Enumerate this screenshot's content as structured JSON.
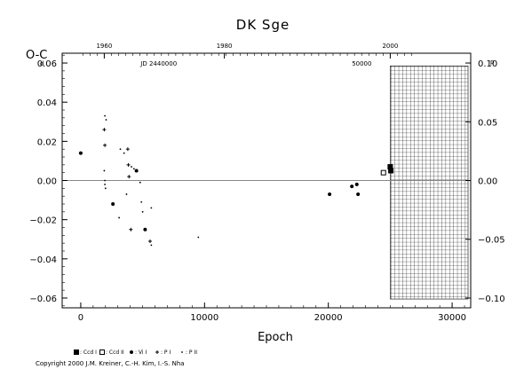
{
  "chart_data": {
    "type": "scatter",
    "title": "DK Sge",
    "xlabel": "Epoch",
    "ylabel": "O-C",
    "ylabel_exponent": "d",
    "right_axis_exponent": "p",
    "xlim": [
      -1500,
      31500
    ],
    "ylim": [
      -0.065,
      0.065
    ],
    "right_axis_ticks": [
      "0.10",
      "0.05",
      "0.00",
      "−0.05",
      "−0.10"
    ],
    "right_axis_values": [
      0.1,
      0.05,
      0.0,
      -0.05,
      -0.1
    ],
    "right_axis_period_days": 0.6,
    "x_ticks": [
      "0",
      "10000",
      "20000",
      "30000"
    ],
    "x_tick_values": [
      0,
      10000,
      20000,
      30000
    ],
    "y_ticks": [
      "0.06",
      "0.04",
      "0.02",
      "0.00",
      "−0.02",
      "−0.04",
      "−0.06"
    ],
    "y_tick_values": [
      0.06,
      0.04,
      0.02,
      0.0,
      -0.02,
      -0.04,
      -0.06
    ],
    "top_axis_ticks": [
      "1960",
      "1980",
      "2000"
    ],
    "top_axis_epochs": [
      1900,
      11600,
      25000
    ],
    "top_axis_label_jd": "JD 2440000",
    "top_axis_label_jd_epoch": 6300,
    "top_axis_label_50000": "50000",
    "top_axis_label_50000_epoch": 22700,
    "future_region_start_epoch": 25000,
    "legend": [
      {
        "symbol": "square-filled",
        "label": ": Ccd I"
      },
      {
        "symbol": "square-open",
        "label": ": Ccd II"
      },
      {
        "symbol": "dot",
        "label": ": Vi I"
      },
      {
        "symbol": "plus",
        "label": ": P I"
      },
      {
        "symbol": "tiny",
        "label": ": P II"
      }
    ],
    "series": [
      {
        "symbol": "square-filled",
        "points": [
          [
            25000,
            0.007
          ],
          [
            25050,
            0.005
          ]
        ]
      },
      {
        "symbol": "square-open",
        "points": [
          [
            24450,
            0.004
          ]
        ]
      },
      {
        "symbol": "dot",
        "points": [
          [
            0,
            0.014
          ],
          [
            20100,
            -0.007
          ],
          [
            21900,
            -0.003
          ],
          [
            22300,
            -0.002
          ],
          [
            22400,
            -0.007
          ],
          [
            2600,
            -0.012
          ],
          [
            4500,
            0.005
          ],
          [
            5200,
            -0.025
          ]
        ]
      },
      {
        "symbol": "plus",
        "points": [
          [
            1900,
            0.026
          ],
          [
            1950,
            0.018
          ],
          [
            3800,
            0.016
          ],
          [
            3850,
            0.008
          ],
          [
            3900,
            0.002
          ],
          [
            4050,
            -0.025
          ],
          [
            5600,
            -0.031
          ]
        ]
      },
      {
        "symbol": "tiny",
        "points": [
          [
            1950,
            0.033
          ],
          [
            2050,
            0.031
          ],
          [
            1900,
            0.005
          ],
          [
            1950,
            0.0
          ],
          [
            1950,
            -0.002
          ],
          [
            2000,
            -0.004
          ],
          [
            3200,
            0.016
          ],
          [
            3500,
            0.014
          ],
          [
            3100,
            -0.019
          ],
          [
            3700,
            -0.007
          ],
          [
            4100,
            0.007
          ],
          [
            4300,
            0.006
          ],
          [
            4800,
            -0.001
          ],
          [
            4900,
            -0.011
          ],
          [
            5000,
            -0.016
          ],
          [
            5700,
            -0.014
          ],
          [
            5700,
            -0.033
          ],
          [
            9500,
            -0.029
          ]
        ]
      }
    ]
  },
  "copyright": "Copyright 2000 J.M. Kreiner, C.-H. Kim, I.-S. Nha"
}
